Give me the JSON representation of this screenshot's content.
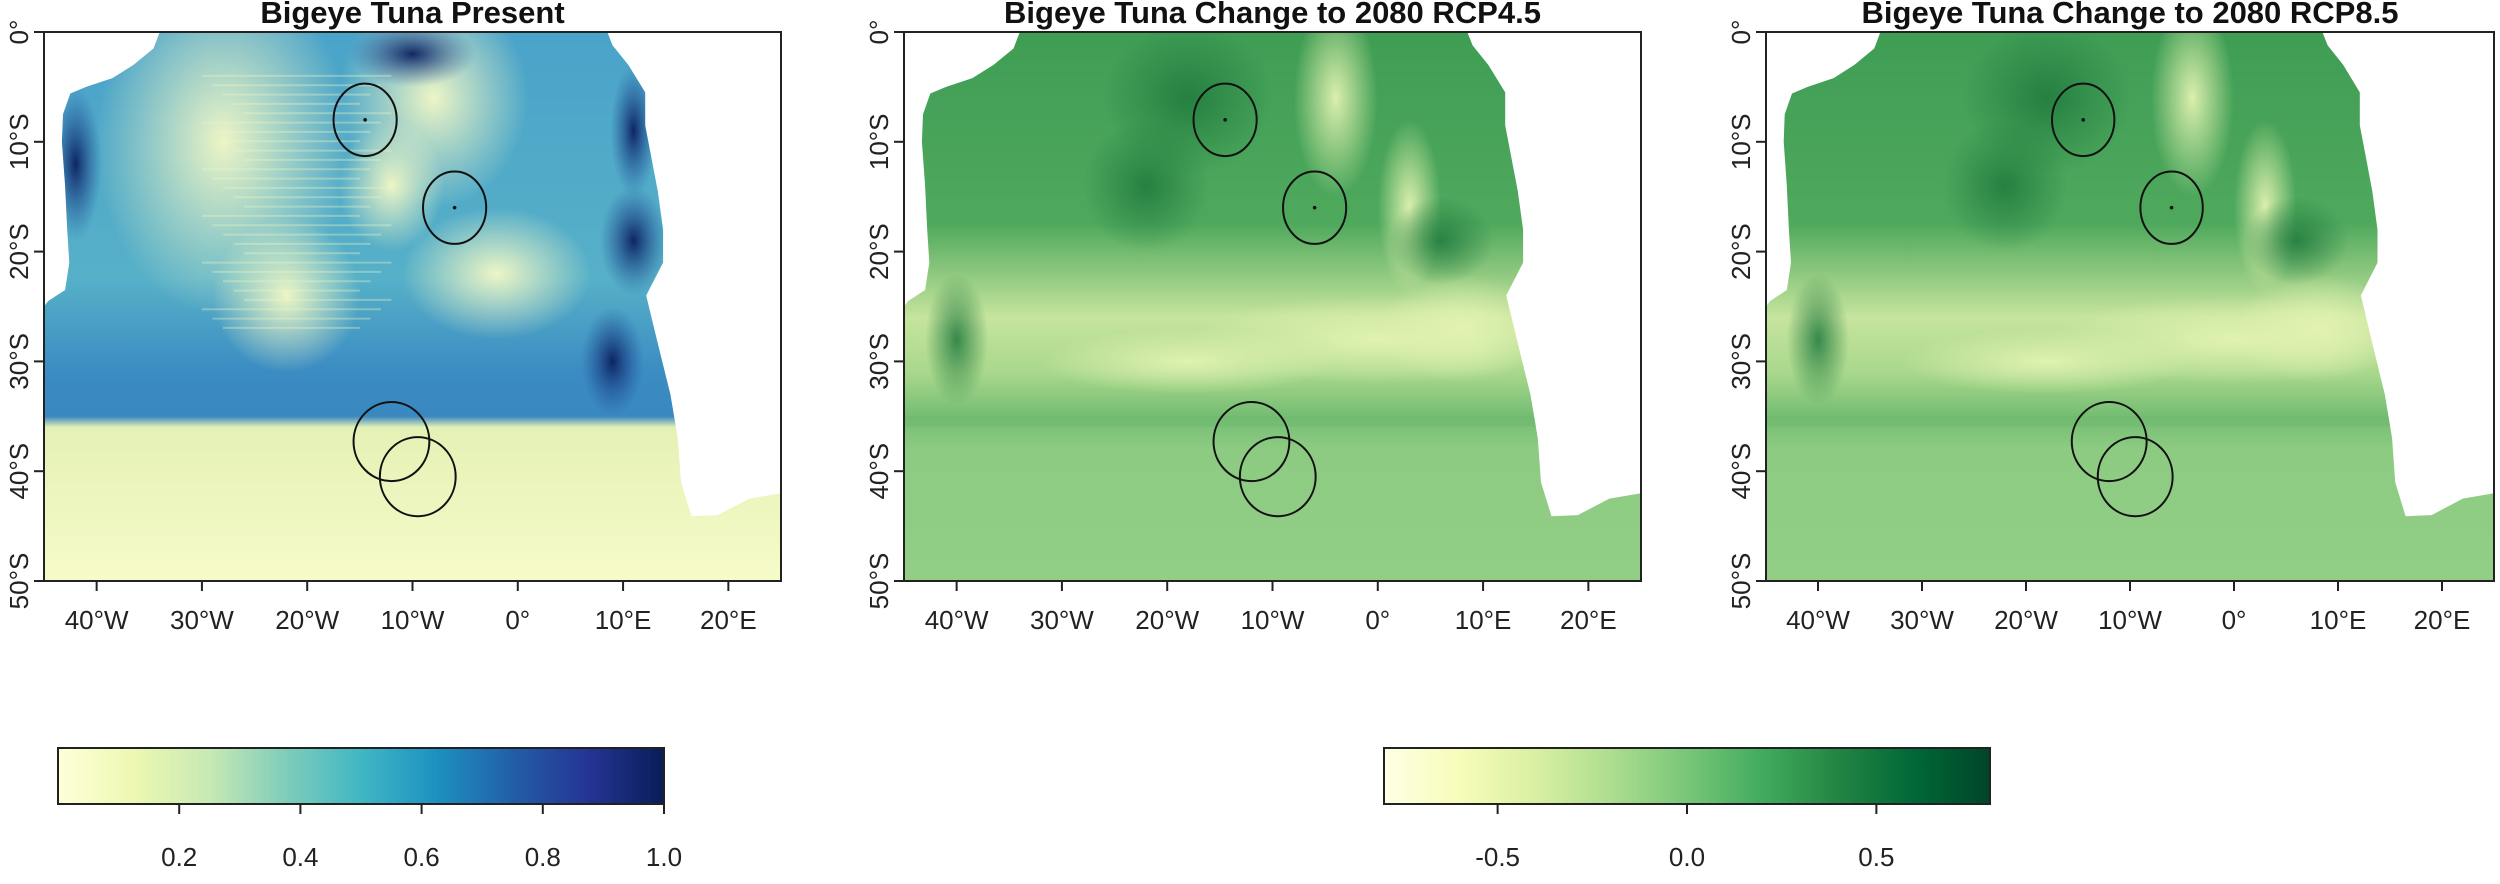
{
  "panels": [
    {
      "title": "Bigeye Tuna Present",
      "palette": "blue",
      "lat_labels": [
        "0°",
        "10°S",
        "20°S",
        "30°S",
        "40°S",
        "50°S"
      ],
      "lon_labels": [
        "40°W",
        "30°W",
        "20°W",
        "10°W",
        "0°",
        "10°E",
        "20°E"
      ]
    },
    {
      "title": "Bigeye Tuna Change to 2080 RCP4.5",
      "palette": "green",
      "lat_labels": [
        "0°",
        "10°S",
        "20°S",
        "30°S",
        "40°S",
        "50°S"
      ],
      "lon_labels": [
        "40°W",
        "30°W",
        "20°W",
        "10°W",
        "0°",
        "10°E",
        "20°E"
      ]
    },
    {
      "title": "Bigeye Tuna Change to 2080 RCP8.5",
      "palette": "green",
      "lat_labels": [
        "0°",
        "10°S",
        "20°S",
        "30°S",
        "40°S",
        "50°S"
      ],
      "lon_labels": [
        "40°W",
        "30°W",
        "20°W",
        "10°W",
        "0°",
        "10°E",
        "20°E"
      ]
    }
  ],
  "map_extent": {
    "lon_min": -45,
    "lon_max": 25,
    "lat_min": -50,
    "lat_max": 0
  },
  "lat_values": [
    0,
    -10,
    -20,
    -30,
    -40,
    -50
  ],
  "lon_values": [
    -40,
    -30,
    -20,
    -10,
    0,
    10,
    20
  ],
  "marked_areas": [
    {
      "lon": -14.5,
      "lat": -8.0,
      "rx_deg": 3.0,
      "ry_deg": 3.3
    },
    {
      "lon": -6.0,
      "lat": -16.0,
      "rx_deg": 3.0,
      "ry_deg": 3.3
    },
    {
      "lon": -12.0,
      "lat": -37.3,
      "rx_deg": 3.6,
      "ry_deg": 3.6
    },
    {
      "lon": -9.5,
      "lat": -40.5,
      "rx_deg": 3.6,
      "ry_deg": 3.6
    }
  ],
  "legends": [
    {
      "scale": "present probability",
      "colors": [
        "#ffffd9",
        "#edf8b1",
        "#c7e9b4",
        "#7fcdbb",
        "#41b6c4",
        "#1d91c0",
        "#225ea8",
        "#253494",
        "#081d58"
      ],
      "range": [
        0.0,
        1.0
      ],
      "ticks": [
        0.2,
        0.4,
        0.6,
        0.8,
        1.0
      ],
      "tick_labels": [
        "0.2",
        "0.4",
        "0.6",
        "0.8",
        "1.0"
      ]
    },
    {
      "scale": "change",
      "colors": [
        "#ffffe5",
        "#f7fcb9",
        "#d9f0a3",
        "#addd8e",
        "#78c679",
        "#41ab5d",
        "#238443",
        "#006837",
        "#004529"
      ],
      "range": [
        -0.8,
        0.8
      ],
      "ticks": [
        -0.5,
        0.0,
        0.5
      ],
      "tick_labels": [
        "-0.5",
        "0.0",
        "0.5"
      ]
    }
  ],
  "colors": {
    "blue_low": "#f7fbc9",
    "blue_mid": "#7fcdbb",
    "blue_high": "#1f4b9c",
    "blue_max": "#0b1e5c",
    "green_light": "#c9e6a0",
    "green_mid": "#7cc27a",
    "green_base": "#8dcb82",
    "green_dark": "#2e8f4a"
  }
}
